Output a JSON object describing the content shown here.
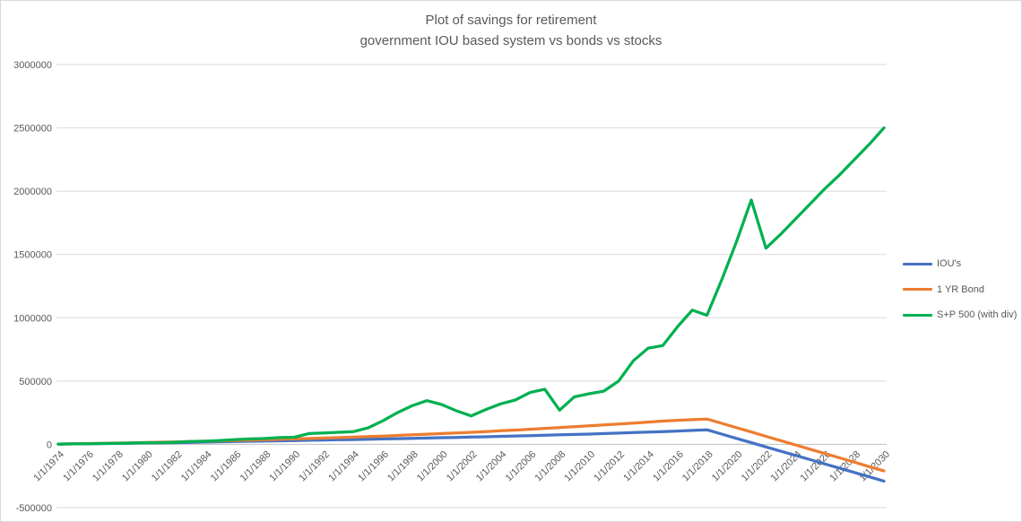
{
  "chart_data": {
    "type": "line",
    "title": "Plot of savings for retirement",
    "subtitle": "government IOU based system vs bonds vs stocks",
    "xlabel": "",
    "ylabel": "",
    "x_unit": "date (1/1/year)",
    "ylim": [
      -500000,
      3000000
    ],
    "y_tick_step": 500000,
    "grid": "horizontal",
    "legend_position": "right",
    "x": [
      1974,
      1975,
      1976,
      1977,
      1978,
      1979,
      1980,
      1981,
      1982,
      1983,
      1984,
      1985,
      1986,
      1987,
      1988,
      1989,
      1990,
      1991,
      1992,
      1993,
      1994,
      1995,
      1996,
      1997,
      1998,
      1999,
      2000,
      2001,
      2002,
      2003,
      2004,
      2005,
      2006,
      2007,
      2008,
      2009,
      2010,
      2011,
      2012,
      2013,
      2014,
      2015,
      2016,
      2017,
      2018,
      2019,
      2020,
      2021,
      2022,
      2023,
      2024,
      2025,
      2026,
      2027,
      2028,
      2029,
      2030
    ],
    "x_ticks": [
      1974,
      1976,
      1978,
      1980,
      1982,
      1984,
      1986,
      1988,
      1990,
      1992,
      1994,
      1996,
      1998,
      2000,
      2002,
      2004,
      2006,
      2008,
      2010,
      2012,
      2014,
      2016,
      2018,
      2020,
      2022,
      2024,
      2026,
      2028,
      2030
    ],
    "x_tick_labels": [
      "1/1/1974",
      "1/1/1976",
      "1/1/1978",
      "1/1/1980",
      "1/1/1982",
      "1/1/1984",
      "1/1/1986",
      "1/1/1988",
      "1/1/1990",
      "1/1/1992",
      "1/1/1994",
      "1/1/1996",
      "1/1/1998",
      "1/1/2000",
      "1/1/2002",
      "1/1/2004",
      "1/1/2006",
      "1/1/2008",
      "1/1/2010",
      "1/1/2012",
      "1/1/2014",
      "1/1/2016",
      "1/1/2018",
      "1/1/2020",
      "1/1/2022",
      "1/1/2024",
      "1/1/2026",
      "1/1/2028",
      "1/1/2030"
    ],
    "series": [
      {
        "key": "ious",
        "name": "IOU's",
        "color": "#4472C4",
        "values": [
          2000,
          3500,
          5000,
          6500,
          8000,
          9500,
          11000,
          12500,
          14000,
          16000,
          18000,
          20000,
          22000,
          24000,
          26000,
          28000,
          30000,
          32000,
          34000,
          36000,
          38000,
          40000,
          42500,
          45000,
          47500,
          50000,
          52500,
          55000,
          57500,
          60000,
          63000,
          66000,
          69000,
          72000,
          75000,
          78000,
          81000,
          85000,
          89000,
          93000,
          97000,
          101000,
          105000,
          110000,
          115000,
          81000,
          47000,
          14000,
          -20000,
          -54000,
          -87000,
          -121000,
          -155000,
          -189000,
          -222000,
          -256000,
          -290000
        ]
      },
      {
        "key": "bond",
        "name": "1 YR Bond",
        "color": "#ED7D31",
        "values": [
          2000,
          4000,
          6000,
          8000,
          10000,
          12000,
          14500,
          17000,
          19500,
          22000,
          25000,
          28000,
          31000,
          34000,
          37000,
          40000,
          43000,
          46000,
          49500,
          53000,
          57000,
          61000,
          65000,
          70000,
          75000,
          80000,
          85000,
          90000,
          95000,
          101000,
          107000,
          113000,
          119000,
          126000,
          133000,
          140000,
          147000,
          154000,
          161000,
          168000,
          176000,
          184000,
          190000,
          195000,
          200000,
          166000,
          132000,
          98000,
          63000,
          29000,
          -5000,
          -39000,
          -73000,
          -107000,
          -141000,
          -176000,
          -210000
        ]
      },
      {
        "key": "sp500",
        "name": "S+P 500 (with div)",
        "color": "#00B050",
        "values": [
          2000,
          3500,
          5500,
          6500,
          8000,
          10000,
          13000,
          14000,
          17000,
          22000,
          25000,
          31000,
          38000,
          43000,
          46000,
          53000,
          56000,
          85000,
          90000,
          95000,
          100000,
          130000,
          185000,
          250000,
          305000,
          345000,
          315000,
          265000,
          225000,
          275000,
          320000,
          350000,
          410000,
          435000,
          270000,
          375000,
          400000,
          420000,
          500000,
          660000,
          760000,
          780000,
          930000,
          1060000,
          1020000,
          1300000,
          1600000,
          1930000,
          1550000,
          1660000,
          1780000,
          1900000,
          2020000,
          2130000,
          2250000,
          2370000,
          2500000
        ]
      }
    ]
  },
  "colors": {
    "gridline": "#D9D9D9",
    "axis_line": "#C0C0C0",
    "text": "#595959",
    "background": "#FFFFFF",
    "border": "#D9D9D9"
  }
}
